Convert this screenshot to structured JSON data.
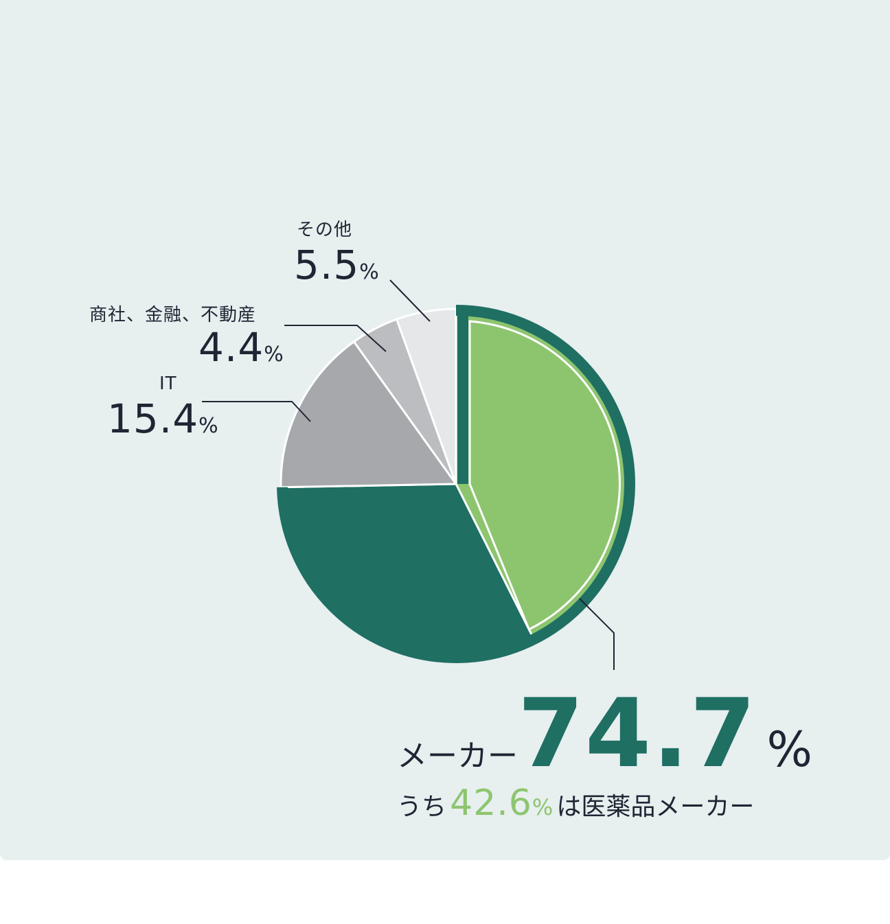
{
  "chart_data": {
    "type": "pie",
    "slices": [
      {
        "label": "医薬品メーカー",
        "value": 42.6,
        "color": "#8dc56f"
      },
      {
        "label": "メーカー",
        "value": 32.1,
        "color": "#1f6f63"
      },
      {
        "label": "IT",
        "value": 15.4,
        "color": "#a6a8ac"
      },
      {
        "label": "商社、金融、不動産",
        "value": 4.4,
        "color": "#bcbdc0"
      },
      {
        "label": "その他",
        "value": 5.5,
        "color": "#e6e7e9"
      }
    ],
    "group_outline_color": "#1f6f63"
  },
  "labels": {
    "other": {
      "name": "その他",
      "value": "5.5",
      "unit": "%"
    },
    "trade": {
      "name": "商社、金融、不動産",
      "value": "4.4",
      "unit": "%"
    },
    "it": {
      "name": "IT",
      "value": "15.4",
      "unit": "%"
    },
    "maker": {
      "name": "メーカー",
      "value": "74.7",
      "unit": "%"
    },
    "pharma": {
      "prefix": "うち",
      "value": "42.6",
      "unit": "%",
      "suffix": "は医薬品メーカー"
    }
  }
}
